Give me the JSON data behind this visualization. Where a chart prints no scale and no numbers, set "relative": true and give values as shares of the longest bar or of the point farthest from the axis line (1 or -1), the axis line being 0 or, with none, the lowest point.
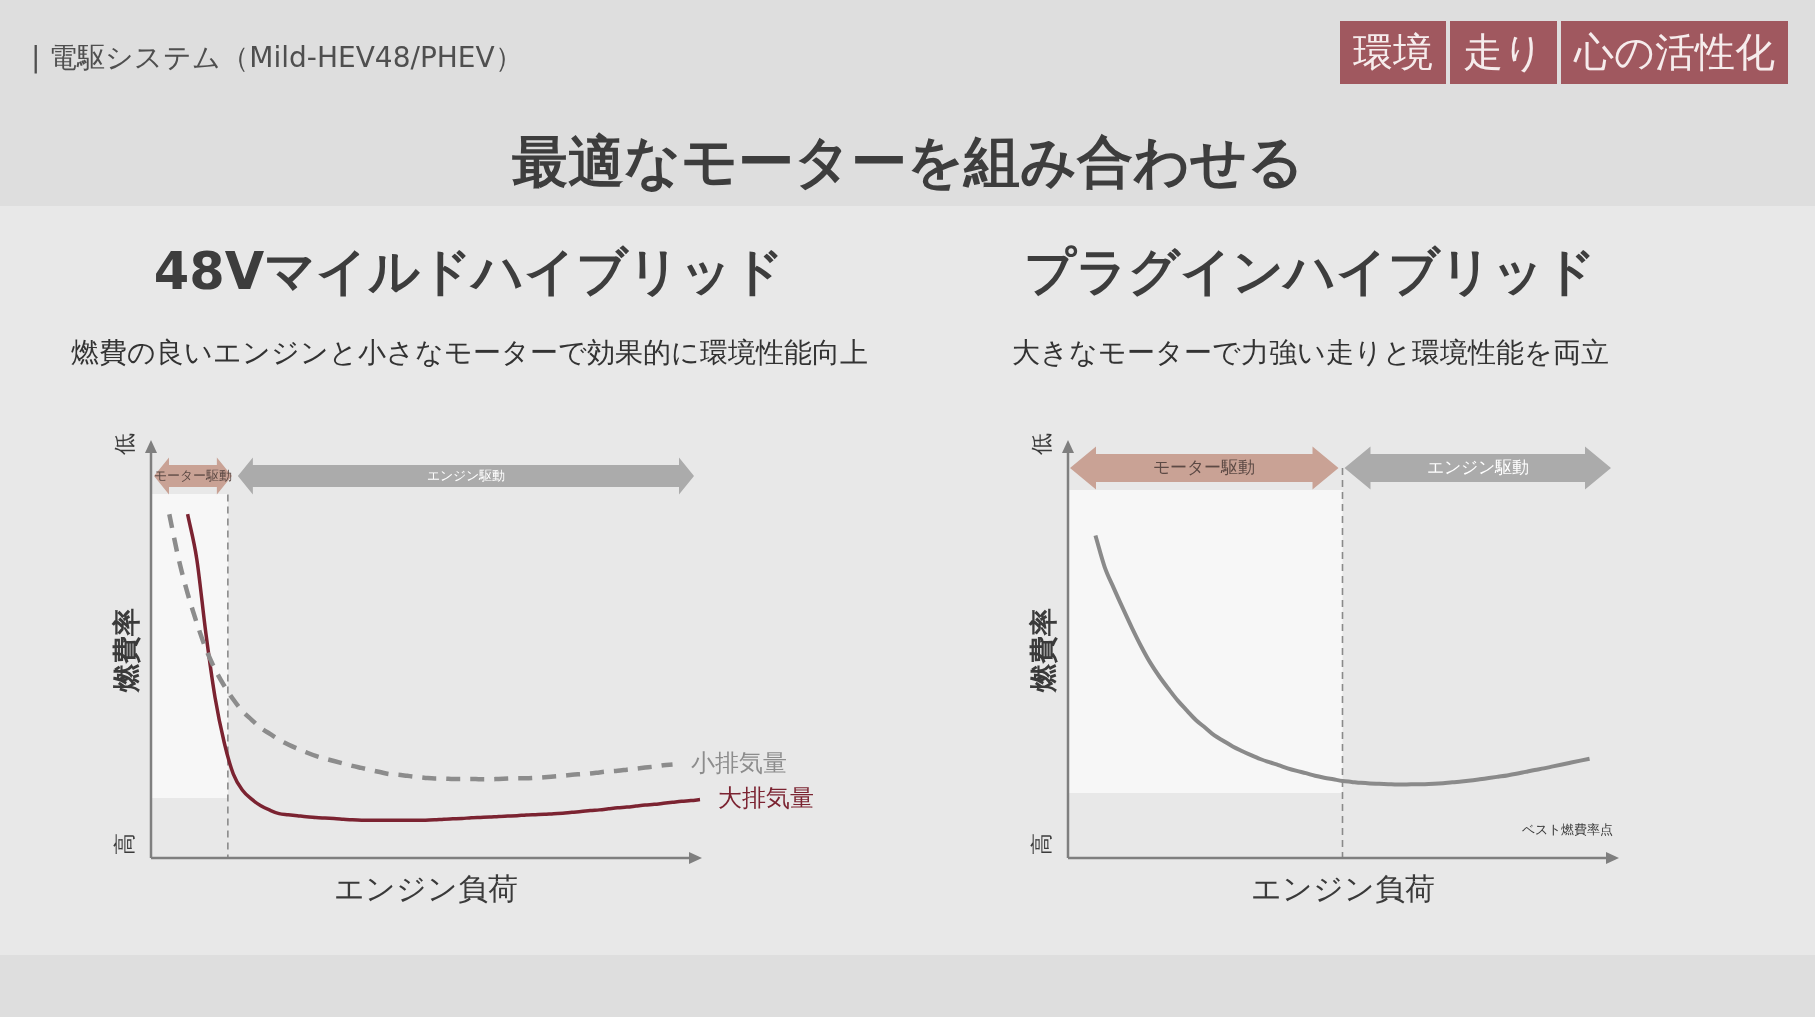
{
  "chart_data": [
    {
      "type": "other",
      "title": "最適なモーターを組み合わせる",
      "annotations": [
        "| 電駆システム（Mild-HEV48/PHEV）",
        "環境",
        "走り",
        "心の活性化"
      ]
    },
    {
      "type": "line",
      "title": "48Vマイルドハイブリッド",
      "subtitle": "燃費の良いエンジンと小さなモーターで効果的に環境性能向上",
      "xlabel": "エンジン負荷",
      "ylabel": "燃費率",
      "relative": true,
      "tick_labels": false,
      "categories": [
        null,
        null,
        null,
        null,
        null,
        null,
        null,
        null,
        null,
        null,
        null,
        null,
        null,
        null,
        null,
        null,
        null,
        null,
        null,
        null,
        null,
        null,
        null,
        null,
        null,
        null,
        null,
        null,
        null,
        null,
        null,
        null,
        null,
        null,
        null,
        null,
        null,
        null,
        null,
        null,
        null,
        null,
        null,
        null,
        null,
        null,
        null,
        null,
        null,
        null,
        null,
        null,
        null,
        null,
        null,
        null,
        null,
        null,
        null,
        null,
        null
      ],
      "series": [
        {
          "name": "小排気量",
          "color": "#8c8c8c",
          "line_style": "dashed",
          "values": [
            null,
            null,
            1,
            0.872,
            0.77,
            0.684,
            0.608,
            0.549,
            0.501,
            0.461,
            0.427,
            0.402,
            0.378,
            0.361,
            0.344,
            0.33,
            0.318,
            0.307,
            0.297,
            0.289,
            0.282,
            0.275,
            0.268,
            0.262,
            0.256,
            0.25,
            0.244,
            0.242,
            0.239,
            0.236,
            0.233,
            0.231,
            0.231,
            0.23,
            0.23,
            0.23,
            0.229,
            0.229,
            0.23,
            0.231,
            0.232,
            0.232,
            0.233,
            0.235,
            0.237,
            0.239,
            0.242,
            0.244,
            0.246,
            0.249,
            0.252,
            0.254,
            0.257,
            0.26,
            0.263,
            0.266,
            0.27,
            0.272,
            null,
            null,
            null
          ]
        },
        {
          "name": "大排気量",
          "color": "#7b2331",
          "values": [
            null,
            null,
            null,
            null,
            1,
            0.87,
            0.653,
            0.467,
            0.336,
            0.244,
            0.197,
            0.171,
            0.152,
            0.139,
            0.129,
            0.126,
            0.123,
            0.12,
            0.118,
            0.116,
            0.115,
            0.113,
            0.111,
            0.11,
            0.11,
            0.11,
            0.11,
            0.11,
            0.11,
            0.11,
            0.11,
            0.111,
            0.113,
            0.114,
            0.115,
            0.117,
            0.118,
            0.119,
            0.121,
            0.122,
            0.123,
            0.125,
            0.126,
            0.127,
            0.129,
            0.13,
            0.133,
            0.135,
            0.138,
            0.14,
            0.143,
            0.146,
            0.148,
            0.151,
            0.154,
            0.156,
            0.159,
            0.162,
            0.165,
            0.167,
            0.17
          ]
        }
      ],
      "annotations": [
        "モーター駆動",
        "エンジン駆動",
        "低",
        "高"
      ]
    },
    {
      "type": "line",
      "title": "プラグインハイブリッド",
      "subtitle": "大きなモーターで力強い走りと環境性能を両立",
      "xlabel": "エンジン負荷",
      "ylabel": "燃費率",
      "relative": true,
      "tick_labels": false,
      "categories": [
        null,
        null,
        null,
        null,
        null,
        null,
        null,
        null,
        null,
        null,
        null,
        null,
        null,
        null,
        null,
        null,
        null,
        null,
        null,
        null,
        null,
        null,
        null,
        null,
        null,
        null,
        null,
        null,
        null,
        null,
        null,
        null,
        null,
        null,
        null,
        null,
        null,
        null,
        null,
        null,
        null,
        null,
        null,
        null,
        null,
        null,
        null,
        null,
        null,
        null,
        null,
        null,
        null,
        null,
        null,
        null,
        null,
        null,
        null,
        null,
        null
      ],
      "series": [
        {
          "color": "#8a8a8a",
          "values": [
            null,
            null,
            null,
            1,
            0.903,
            0.837,
            0.774,
            0.713,
            0.656,
            0.605,
            0.562,
            0.524,
            0.488,
            0.457,
            0.427,
            0.404,
            0.38,
            0.363,
            0.346,
            0.332,
            0.319,
            0.307,
            0.297,
            0.288,
            0.278,
            0.27,
            0.263,
            0.255,
            0.249,
            0.244,
            0.239,
            0.236,
            0.233,
            0.231,
            0.23,
            0.229,
            0.228,
            0.228,
            0.229,
            0.229,
            0.23,
            0.232,
            0.235,
            0.237,
            0.24,
            0.244,
            0.248,
            0.252,
            0.256,
            0.261,
            0.267,
            0.273,
            0.278,
            0.284,
            0.29,
            0.296,
            0.302,
            0.308,
            null,
            null,
            null
          ]
        }
      ],
      "annotations": [
        "モーター駆動",
        "エンジン駆動",
        "低",
        "高",
        "ベスト燃費率点"
      ]
    }
  ]
}
